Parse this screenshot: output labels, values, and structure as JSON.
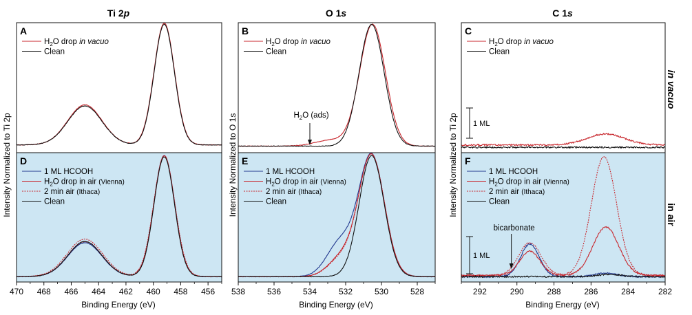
{
  "columns": [
    {
      "title_main": "Ti 2",
      "title_suffix": "p"
    },
    {
      "title_main": "O 1",
      "title_suffix": "s"
    },
    {
      "title_main": "C 1",
      "title_suffix": "s"
    }
  ],
  "row_labels": [
    "in vacuo",
    "in air"
  ],
  "colors": {
    "red": "#c8272d",
    "black": "#111111",
    "blue": "#23398f",
    "air_bg": "#cde6f3"
  },
  "ylabels": [
    "Intensity Normalized to Ti 2p",
    "Intensity Normalized to O 1s",
    "Intensity Normalized to Ti 2p"
  ],
  "xlabel": "Binding Energy (eV)",
  "scale_bar_label": "1 ML",
  "chart_data": [
    {
      "type": "line",
      "panel": "A",
      "title": "Ti 2p",
      "xlabel": "Binding Energy (eV)",
      "ylabel": "Intensity Normalized to Ti 2p",
      "xlim": [
        470,
        455
      ],
      "ticks": [
        470,
        468,
        466,
        464,
        462,
        460,
        458,
        456
      ],
      "legend": [
        "H2O drop in vacuo",
        "Clean"
      ],
      "series": [
        {
          "name": "H2O drop in vacuo",
          "color": "red",
          "peaks": [
            {
              "x": 459.2,
              "h": 1.0,
              "w": 0.75
            },
            {
              "x": 465.0,
              "h": 0.33,
              "w": 1.25
            }
          ],
          "baseline": 0.03
        },
        {
          "name": "Clean",
          "color": "black",
          "peaks": [
            {
              "x": 459.2,
              "h": 0.99,
              "w": 0.74
            },
            {
              "x": 465.0,
              "h": 0.32,
              "w": 1.25
            }
          ],
          "baseline": 0.03
        }
      ]
    },
    {
      "type": "line",
      "panel": "B",
      "title": "O 1s",
      "xlabel": "Binding Energy (eV)",
      "ylabel": "Intensity Normalized to O 1s",
      "xlim": [
        538,
        527
      ],
      "ticks": [
        538,
        536,
        534,
        532,
        530,
        528
      ],
      "legend": [
        "H2O drop in vacuo",
        "Clean"
      ],
      "annotation": "H2O (ads)",
      "annotation_x": 534.0,
      "series": [
        {
          "name": "H2O drop in vacuo",
          "color": "red",
          "peaks": [
            {
              "x": 530.5,
              "h": 1.0,
              "w": 0.72
            },
            {
              "x": 532.8,
              "h": 0.05,
              "w": 0.9
            }
          ],
          "baseline": 0.02
        },
        {
          "name": "Clean",
          "color": "black",
          "peaks": [
            {
              "x": 530.55,
              "h": 1.0,
              "w": 0.7
            }
          ],
          "baseline": 0.02
        }
      ]
    },
    {
      "type": "line",
      "panel": "C",
      "title": "C 1s",
      "xlabel": "Binding Energy (eV)",
      "ylabel": "Intensity Normalized to Ti 2p",
      "xlim": [
        293,
        282
      ],
      "ticks": [
        292,
        290,
        288,
        286,
        284,
        282
      ],
      "legend": [
        "H2O drop in vacuo",
        "Clean"
      ],
      "series": [
        {
          "name": "H2O drop in vacuo",
          "color": "red",
          "peaks": [
            {
              "x": 285.2,
              "h": 0.09,
              "w": 1.0
            }
          ],
          "baseline": 0.03
        },
        {
          "name": "Clean",
          "color": "black",
          "peaks": [],
          "baseline": 0.01
        }
      ]
    },
    {
      "type": "line",
      "panel": "D",
      "xlabel": "Binding Energy (eV)",
      "xlim": [
        470,
        455
      ],
      "ticks": [
        470,
        468,
        466,
        464,
        462,
        460,
        458,
        456
      ],
      "legend": [
        "1 ML HCOOH",
        "H2O drop in air (Vienna)",
        "2 min air (Ithaca)",
        "Clean"
      ],
      "series": [
        {
          "name": "1 ML HCOOH",
          "color": "blue",
          "peaks": [
            {
              "x": 459.2,
              "h": 1.0,
              "w": 0.76
            },
            {
              "x": 465.0,
              "h": 0.28,
              "w": 1.25
            }
          ],
          "baseline": 0.01
        },
        {
          "name": "H2O drop in air (Vienna)",
          "color": "red",
          "peaks": [
            {
              "x": 459.2,
              "h": 1.0,
              "w": 0.76
            },
            {
              "x": 465.0,
              "h": 0.29,
              "w": 1.25
            }
          ],
          "baseline": 0.01
        },
        {
          "name": "2 min air (Ithaca)",
          "color": "red",
          "dashed": true,
          "peaks": [
            {
              "x": 459.2,
              "h": 0.99,
              "w": 0.78
            },
            {
              "x": 465.0,
              "h": 0.31,
              "w": 1.3
            }
          ],
          "baseline": 0.01
        },
        {
          "name": "Clean",
          "color": "black",
          "peaks": [
            {
              "x": 459.2,
              "h": 0.99,
              "w": 0.75
            },
            {
              "x": 465.0,
              "h": 0.29,
              "w": 1.25
            }
          ],
          "baseline": 0.01
        }
      ]
    },
    {
      "type": "line",
      "panel": "E",
      "xlabel": "Binding Energy (eV)",
      "xlim": [
        538,
        527
      ],
      "ticks": [
        538,
        536,
        534,
        532,
        530,
        528
      ],
      "legend": [
        "1 ML HCOOH",
        "H2O drop in air (Vienna)",
        "2 min air (Ithaca)",
        "Clean"
      ],
      "series": [
        {
          "name": "1 ML HCOOH",
          "color": "blue",
          "peaks": [
            {
              "x": 530.55,
              "h": 1.0,
              "w": 0.72
            },
            {
              "x": 532.3,
              "h": 0.28,
              "w": 0.75
            }
          ],
          "baseline": 0.01
        },
        {
          "name": "H2O drop in air (Vienna)",
          "color": "red",
          "peaks": [
            {
              "x": 530.55,
              "h": 1.0,
              "w": 0.72
            },
            {
              "x": 532.2,
              "h": 0.16,
              "w": 0.75
            }
          ],
          "baseline": 0.01
        },
        {
          "name": "2 min air (Ithaca)",
          "color": "red",
          "dashed": true,
          "peaks": [
            {
              "x": 530.55,
              "h": 1.0,
              "w": 0.72
            },
            {
              "x": 532.2,
              "h": 0.15,
              "w": 0.75
            }
          ],
          "baseline": 0.01
        },
        {
          "name": "Clean",
          "color": "black",
          "peaks": [
            {
              "x": 530.55,
              "h": 1.0,
              "w": 0.7
            }
          ],
          "baseline": 0.01
        }
      ]
    },
    {
      "type": "line",
      "panel": "F",
      "xlabel": "Binding Energy (eV)",
      "xlim": [
        293,
        282
      ],
      "ticks": [
        292,
        290,
        288,
        286,
        284,
        282
      ],
      "legend": [
        "1 ML HCOOH",
        "H2O drop in air (Vienna)",
        "2 min air (Ithaca)",
        "Clean"
      ],
      "annotation": "bicarbonate",
      "annotation_x": 290.3,
      "series": [
        {
          "name": "1 ML HCOOH",
          "color": "blue",
          "peaks": [
            {
              "x": 289.3,
              "h": 0.27,
              "w": 0.5
            },
            {
              "x": 285.2,
              "h": 0.03,
              "w": 0.6
            }
          ],
          "baseline": 0.01
        },
        {
          "name": "H2O drop in air (Vienna)",
          "color": "red",
          "peaks": [
            {
              "x": 289.3,
              "h": 0.2,
              "w": 0.55
            },
            {
              "x": 285.2,
              "h": 0.4,
              "w": 0.7
            }
          ],
          "baseline": 0.02
        },
        {
          "name": "2 min air (Ithaca)",
          "color": "red",
          "dashed": true,
          "peaks": [
            {
              "x": 289.3,
              "h": 0.27,
              "w": 0.6
            },
            {
              "x": 285.3,
              "h": 0.98,
              "w": 0.68
            }
          ],
          "baseline": 0.02
        },
        {
          "name": "Clean",
          "color": "black",
          "peaks": [
            {
              "x": 285.0,
              "h": 0.02,
              "w": 0.6
            }
          ],
          "baseline": 0.01
        }
      ]
    }
  ]
}
